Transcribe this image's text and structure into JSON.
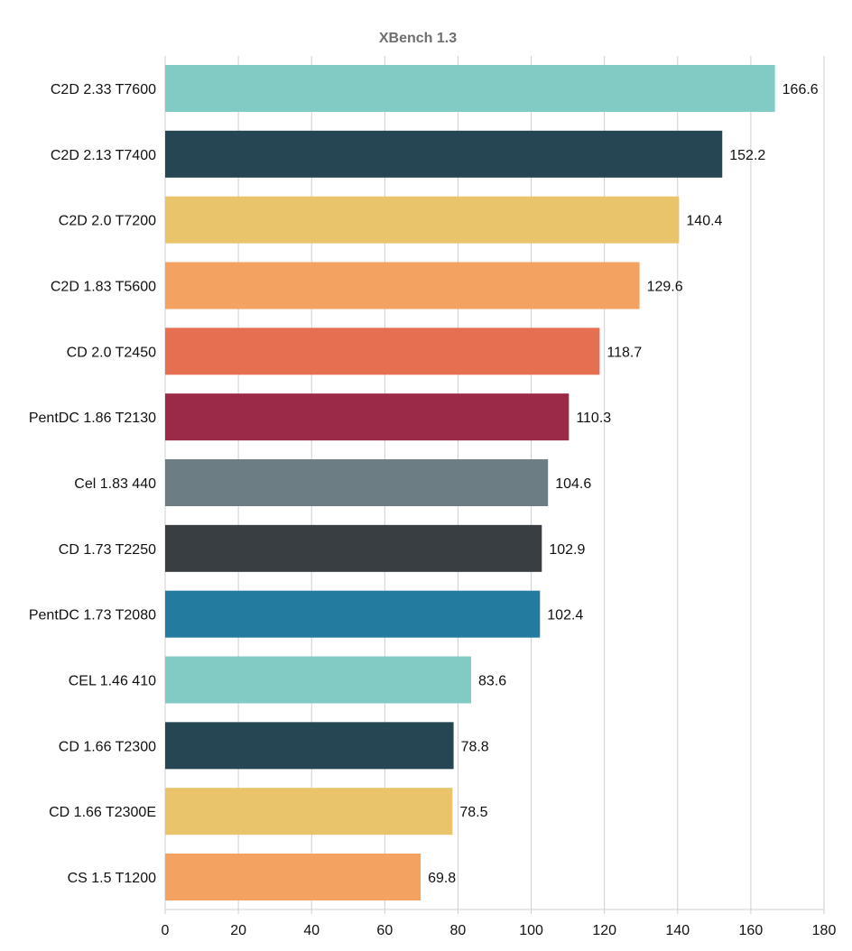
{
  "chart_data": {
    "type": "bar",
    "orientation": "horizontal",
    "title": "XBench 1.3",
    "xlabel": "",
    "ylabel": "",
    "xlim": [
      0,
      180
    ],
    "xticks": [
      0,
      20,
      40,
      60,
      80,
      100,
      120,
      140,
      160,
      180
    ],
    "grid": true,
    "categories": [
      "C2D 2.33 T7600",
      "C2D 2.13 T7400",
      "C2D 2.0 T7200",
      "C2D 1.83 T5600",
      "CD 2.0 T2450",
      "PentDC 1.86 T2130",
      "Cel 1.83 440",
      "CD 1.73 T2250",
      "PentDC 1.73 T2080",
      "CEL 1.46 410",
      "CD 1.66 T2300",
      "CD 1.66 T2300E",
      "CS 1.5 T1200"
    ],
    "values": [
      166.6,
      152.2,
      140.4,
      129.6,
      118.7,
      110.3,
      104.6,
      102.9,
      102.4,
      83.6,
      78.8,
      78.5,
      69.8
    ],
    "value_labels": [
      "166.6",
      "152.2",
      "140.4",
      "129.6",
      "118.7",
      "110.3",
      "104.6",
      "102.9",
      "102.4",
      "83.6",
      "78.8",
      "78.5",
      "69.8"
    ],
    "colors": [
      "#81cbc4",
      "#264653",
      "#e9c46a",
      "#f4a261",
      "#e76f51",
      "#9b2a47",
      "#6c7d83",
      "#383e42",
      "#247ba0",
      "#81cbc4",
      "#264653",
      "#e9c46a",
      "#f4a261"
    ]
  }
}
